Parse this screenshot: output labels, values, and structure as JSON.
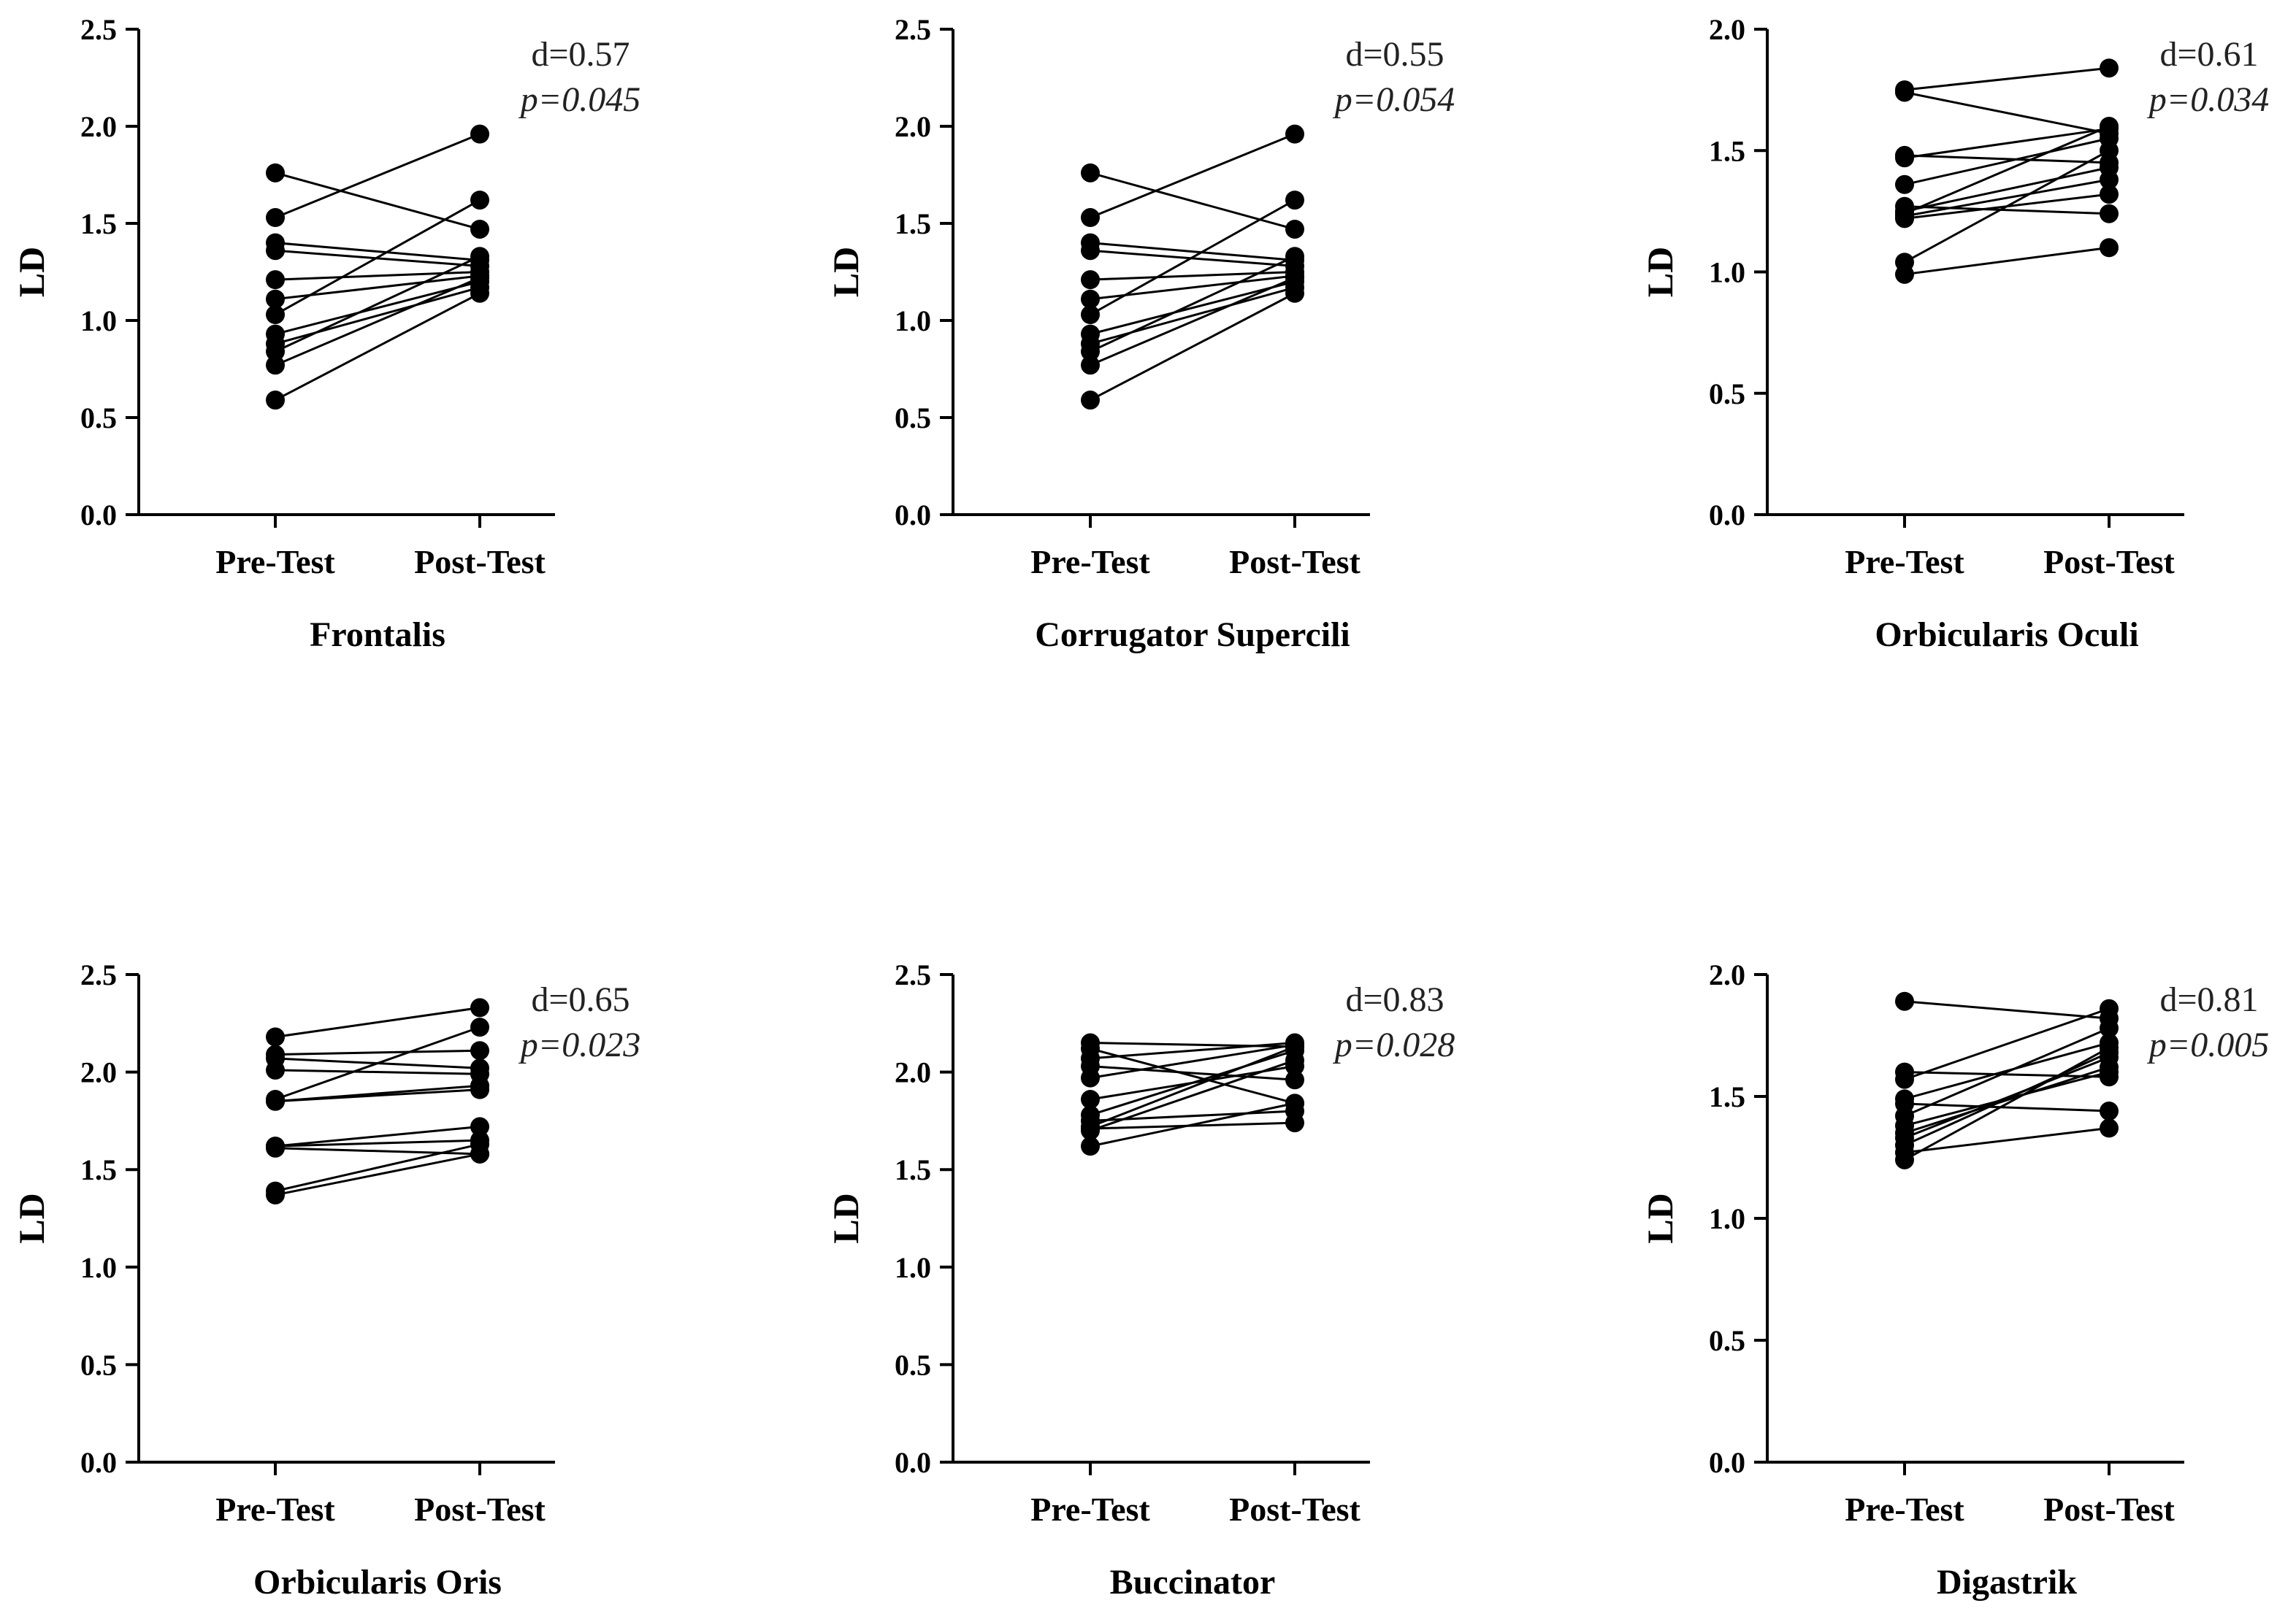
{
  "chart_data": [
    {
      "type": "scatter",
      "title": "Frontalis",
      "ylabel": "LD",
      "categories": [
        "Pre-Test",
        "Post-Test"
      ],
      "ylim": [
        0,
        2.5
      ],
      "yticks": [
        "0.0",
        "0.5",
        "1.0",
        "1.5",
        "2.0",
        "2.5"
      ],
      "effect_size": "d=0.57",
      "p_value": "p=0.045",
      "pairs": [
        [
          1.76,
          1.47
        ],
        [
          1.53,
          1.96
        ],
        [
          1.4,
          1.31
        ],
        [
          1.36,
          1.28
        ],
        [
          1.21,
          1.25
        ],
        [
          1.11,
          1.23
        ],
        [
          1.03,
          1.62
        ],
        [
          0.93,
          1.2
        ],
        [
          0.88,
          1.17
        ],
        [
          0.84,
          1.33
        ],
        [
          0.77,
          1.22
        ],
        [
          0.59,
          1.14
        ]
      ]
    },
    {
      "type": "scatter",
      "title": "Corrugator Supercili",
      "ylabel": "LD",
      "categories": [
        "Pre-Test",
        "Post-Test"
      ],
      "ylim": [
        0,
        2.5
      ],
      "yticks": [
        "0.0",
        "0.5",
        "1.0",
        "1.5",
        "2.0",
        "2.5"
      ],
      "effect_size": "d=0.55",
      "p_value": "p=0.054",
      "pairs": [
        [
          1.76,
          1.47
        ],
        [
          1.53,
          1.96
        ],
        [
          1.4,
          1.31
        ],
        [
          1.36,
          1.28
        ],
        [
          1.21,
          1.25
        ],
        [
          1.11,
          1.23
        ],
        [
          1.03,
          1.62
        ],
        [
          0.93,
          1.2
        ],
        [
          0.88,
          1.17
        ],
        [
          0.84,
          1.33
        ],
        [
          0.77,
          1.22
        ],
        [
          0.59,
          1.14
        ]
      ]
    },
    {
      "type": "scatter",
      "title": "Orbicularis Oculi",
      "ylabel": "LD",
      "categories": [
        "Pre-Test",
        "Post-Test"
      ],
      "ylim": [
        0,
        2.0
      ],
      "yticks": [
        "0.0",
        "0.5",
        "1.0",
        "1.5",
        "2.0"
      ],
      "effect_size": "d=0.61",
      "p_value": "p=0.034",
      "pairs": [
        [
          1.75,
          1.84
        ],
        [
          1.74,
          1.57
        ],
        [
          1.48,
          1.45
        ],
        [
          1.47,
          1.59
        ],
        [
          1.36,
          1.55
        ],
        [
          1.27,
          1.24
        ],
        [
          1.25,
          1.43
        ],
        [
          1.24,
          1.6
        ],
        [
          1.23,
          1.38
        ],
        [
          1.22,
          1.32
        ],
        [
          1.04,
          1.5
        ],
        [
          0.99,
          1.1
        ]
      ]
    },
    {
      "type": "scatter",
      "title": "Orbicularis Oris",
      "ylabel": "LD",
      "categories": [
        "Pre-Test",
        "Post-Test"
      ],
      "ylim": [
        0,
        2.5
      ],
      "yticks": [
        "0.0",
        "0.5",
        "1.0",
        "1.5",
        "2.0",
        "2.5"
      ],
      "effect_size": "d=0.65",
      "p_value": "p=0.023",
      "pairs": [
        [
          2.18,
          2.33
        ],
        [
          2.09,
          2.11
        ],
        [
          2.07,
          2.02
        ],
        [
          2.01,
          1.99
        ],
        [
          1.86,
          2.23
        ],
        [
          1.85,
          1.93
        ],
        [
          1.85,
          1.91
        ],
        [
          1.62,
          1.65
        ],
        [
          1.62,
          1.72
        ],
        [
          1.61,
          1.58
        ],
        [
          1.39,
          1.63
        ],
        [
          1.37,
          1.58
        ]
      ]
    },
    {
      "type": "scatter",
      "title": "Buccinator",
      "ylabel": "LD",
      "categories": [
        "Pre-Test",
        "Post-Test"
      ],
      "ylim": [
        0,
        2.5
      ],
      "yticks": [
        "0.0",
        "0.5",
        "1.0",
        "1.5",
        "2.0",
        "2.5"
      ],
      "effect_size": "d=0.83",
      "p_value": "p=0.028",
      "pairs": [
        [
          2.15,
          2.13
        ],
        [
          2.12,
          1.84
        ],
        [
          2.07,
          2.15
        ],
        [
          2.03,
          1.96
        ],
        [
          1.97,
          2.14
        ],
        [
          1.86,
          2.03
        ],
        [
          1.78,
          2.11
        ],
        [
          1.75,
          1.8
        ],
        [
          1.72,
          2.13
        ],
        [
          1.71,
          1.74
        ],
        [
          1.7,
          2.06
        ],
        [
          1.62,
          1.84
        ]
      ]
    },
    {
      "type": "scatter",
      "title": "Digastrik",
      "ylabel": "LD",
      "categories": [
        "Pre-Test",
        "Post-Test"
      ],
      "ylim": [
        0,
        2.0
      ],
      "yticks": [
        "0.0",
        "0.5",
        "1.0",
        "1.5",
        "2.0"
      ],
      "effect_size": "d=0.81",
      "p_value": "p=0.005",
      "pairs": [
        [
          1.89,
          1.82
        ],
        [
          1.6,
          1.58
        ],
        [
          1.57,
          1.86
        ],
        [
          1.49,
          1.72
        ],
        [
          1.47,
          1.44
        ],
        [
          1.42,
          1.78
        ],
        [
          1.38,
          1.6
        ],
        [
          1.35,
          1.62
        ],
        [
          1.33,
          1.66
        ],
        [
          1.3,
          1.68
        ],
        [
          1.27,
          1.37
        ],
        [
          1.24,
          1.7
        ]
      ]
    }
  ]
}
